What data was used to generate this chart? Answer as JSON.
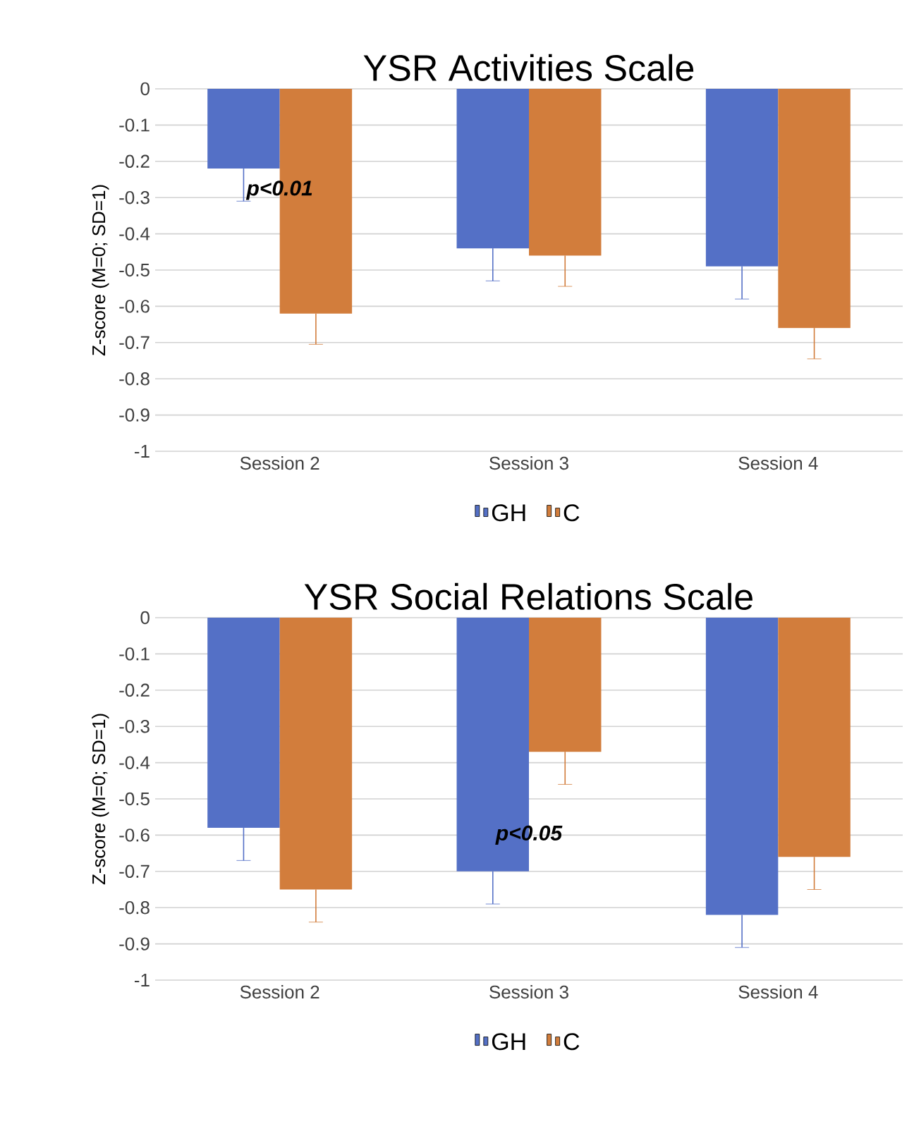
{
  "chart_data": [
    {
      "type": "bar",
      "title": "YSR Activities Scale",
      "ylabel": "Z-score (M=0; SD=1)",
      "categories": [
        "Session 2",
        "Session 3",
        "Session 4"
      ],
      "series": [
        {
          "name": "GH",
          "color": "#5470c6",
          "values": [
            -0.22,
            -0.44,
            -0.49
          ],
          "errors": [
            [
              -0.31,
              -0.22
            ],
            [
              -0.53,
              -0.44
            ],
            [
              -0.58,
              -0.49
            ]
          ]
        },
        {
          "name": "C",
          "color": "#d27d3c",
          "values": [
            -0.62,
            -0.46,
            -0.66
          ],
          "errors": [
            [
              -0.705,
              -0.62
            ],
            [
              -0.545,
              -0.46
            ],
            [
              -0.745,
              -0.66
            ]
          ]
        }
      ],
      "ylim": [
        -1,
        0
      ],
      "yticks": [
        -1,
        -0.9,
        -0.8,
        -0.7,
        -0.6,
        -0.5,
        -0.4,
        -0.3,
        -0.2,
        -0.1,
        0
      ],
      "grid": "y",
      "legend": "bottom",
      "annotations": [
        {
          "text": "p<0.01",
          "x": "Session 2",
          "y": -0.28
        }
      ]
    },
    {
      "type": "bar",
      "title": "YSR Social Relations Scale",
      "ylabel": "Z-score (M=0; SD=1)",
      "categories": [
        "Session 2",
        "Session 3",
        "Session 4"
      ],
      "series": [
        {
          "name": "GH",
          "color": "#5470c6",
          "values": [
            -0.58,
            -0.7,
            -0.82
          ],
          "errors": [
            [
              -0.67,
              -0.58
            ],
            [
              -0.79,
              -0.7
            ],
            [
              -0.91,
              -0.82
            ]
          ]
        },
        {
          "name": "C",
          "color": "#d27d3c",
          "values": [
            -0.75,
            -0.37,
            -0.66
          ],
          "errors": [
            [
              -0.84,
              -0.75
            ],
            [
              -0.46,
              -0.37
            ],
            [
              -0.75,
              -0.66
            ]
          ]
        }
      ],
      "ylim": [
        -1,
        0
      ],
      "yticks": [
        -1,
        -0.9,
        -0.8,
        -0.7,
        -0.6,
        -0.5,
        -0.4,
        -0.3,
        -0.2,
        -0.1,
        0
      ],
      "grid": "y",
      "legend": "bottom",
      "annotations": [
        {
          "text": "p<0.05",
          "x": "Session 3",
          "y": -0.6
        }
      ]
    }
  ]
}
